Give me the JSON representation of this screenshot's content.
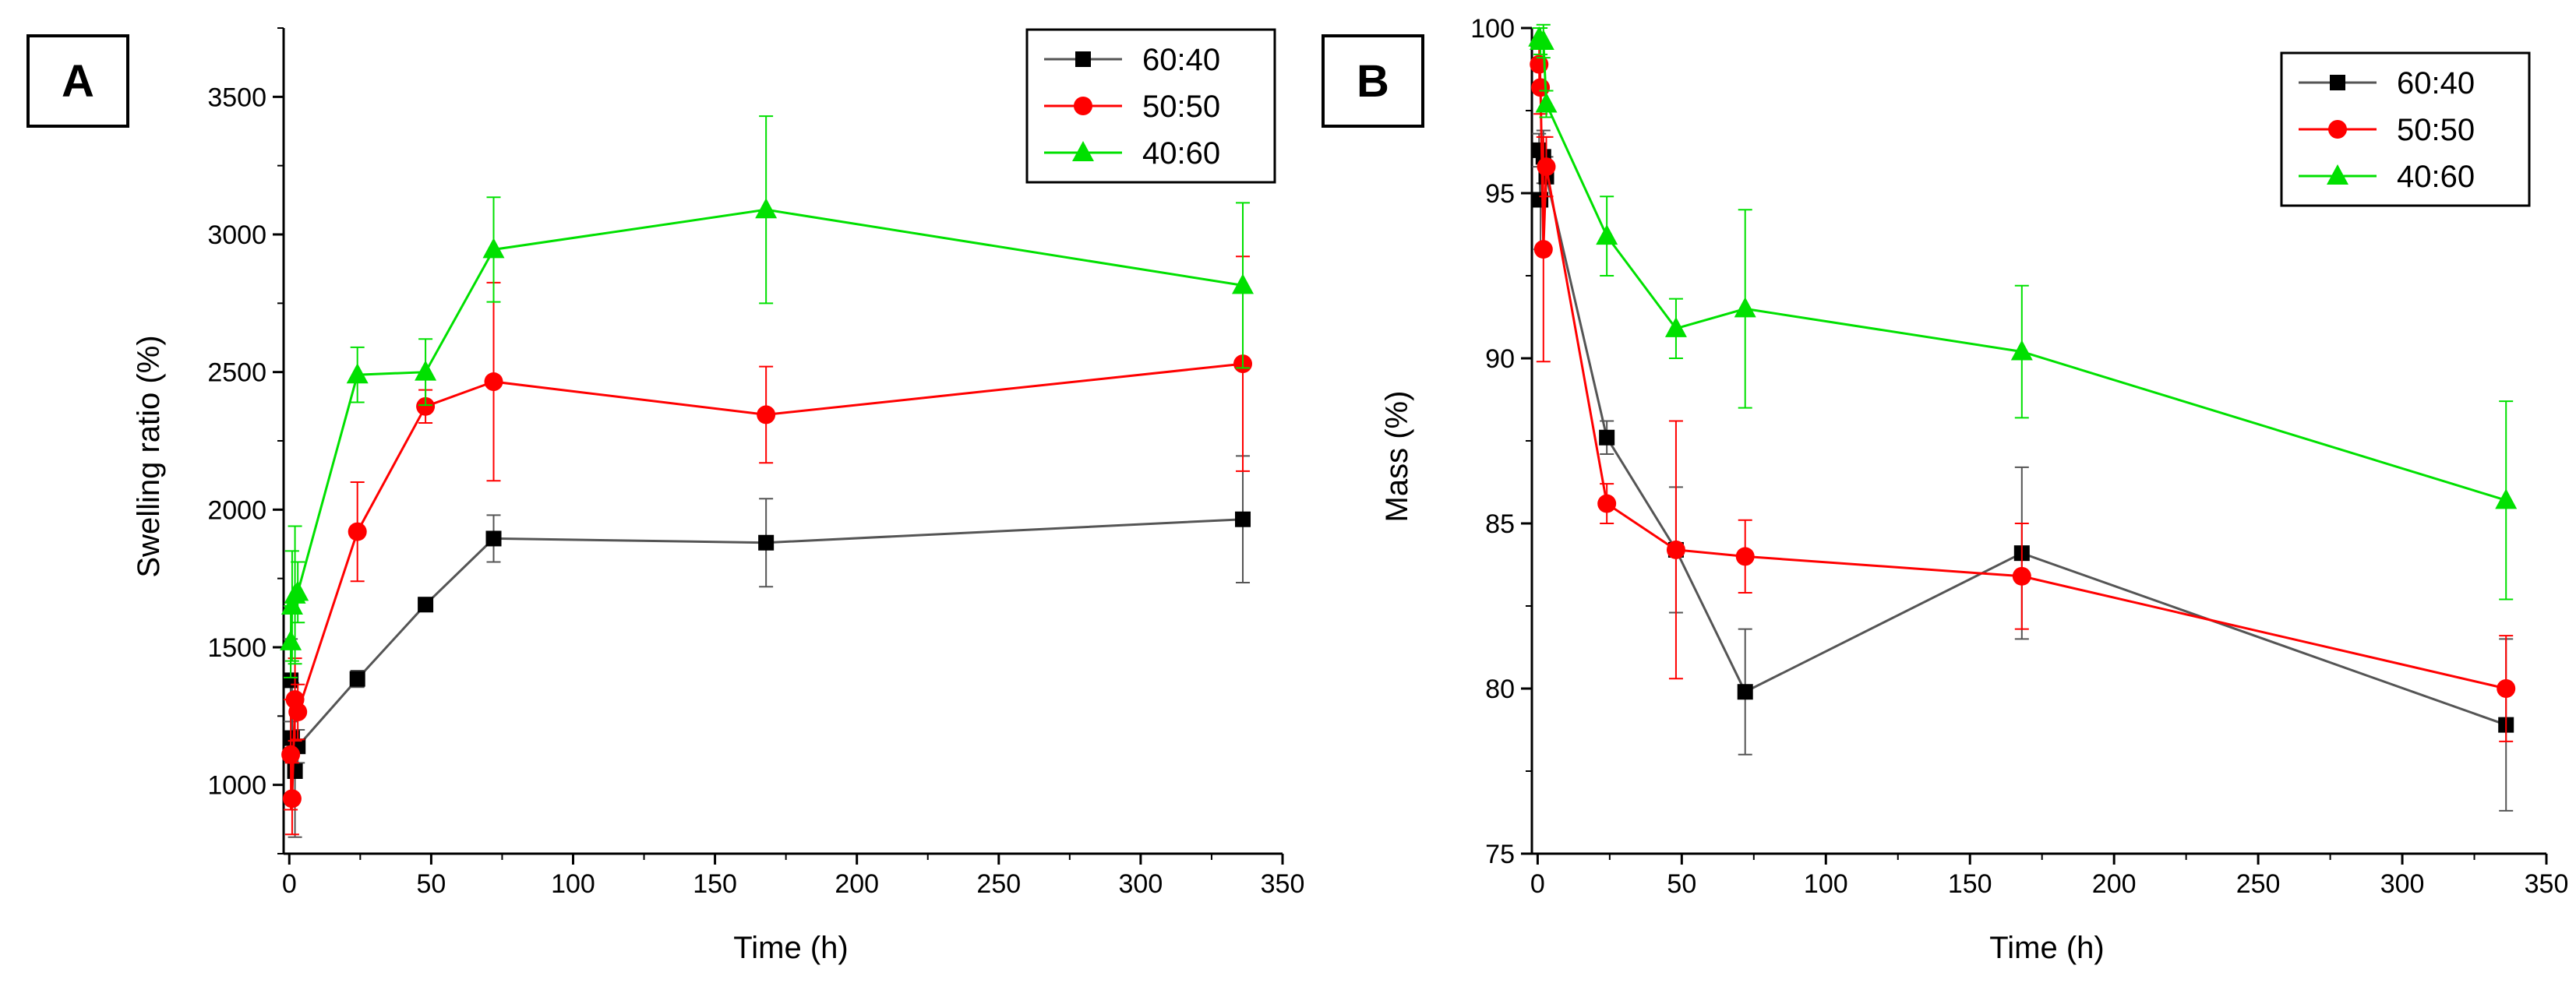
{
  "colors": {
    "s6040": "#000000",
    "s5050": "#ff0000",
    "s4060": "#00e000"
  },
  "chart_data": [
    {
      "type": "line",
      "panel_label": "A",
      "xlabel": "Time (h)",
      "ylabel": "Swelling ratio (%)",
      "xlim": [
        -2,
        350
      ],
      "ylim": [
        750,
        3750
      ],
      "xticks": [
        0,
        50,
        100,
        150,
        200,
        250,
        300,
        350
      ],
      "yticks": [
        1000,
        1500,
        2000,
        2500,
        3000,
        3500
      ],
      "legend_position": "top-right",
      "series": [
        {
          "name": "60:40",
          "color_key": "s6040",
          "marker": "square",
          "x": [
            0.5,
            1,
            2,
            3,
            24,
            48,
            72,
            168,
            336
          ],
          "y": [
            1380,
            1170,
            1050,
            1140,
            1385,
            1655,
            1895,
            1880,
            1965
          ],
          "err": [
            150,
            200,
            240,
            60,
            30,
            25,
            85,
            160,
            230
          ]
        },
        {
          "name": "50:50",
          "color_key": "s5050",
          "marker": "circle",
          "x": [
            0.5,
            1,
            2,
            3,
            24,
            48,
            72,
            168,
            336
          ],
          "y": [
            1110,
            950,
            1310,
            1265,
            1920,
            2375,
            2465,
            2345,
            2530
          ],
          "err": [
            200,
            130,
            150,
            100,
            180,
            60,
            360,
            175,
            390
          ]
        },
        {
          "name": "40:60",
          "color_key": "s4060",
          "marker": "triangle",
          "x": [
            0.5,
            1,
            2,
            3,
            24,
            48,
            72,
            168,
            336
          ],
          "y": [
            1520,
            1650,
            1690,
            1700,
            2490,
            2500,
            2945,
            3090,
            2815
          ],
          "err": [
            130,
            200,
            250,
            110,
            100,
            120,
            190,
            340,
            300
          ]
        }
      ]
    },
    {
      "type": "line",
      "panel_label": "B",
      "xlabel": "Time (h)",
      "ylabel": "Mass (%)",
      "xlim": [
        -2,
        350
      ],
      "ylim": [
        75,
        100
      ],
      "xticks": [
        0,
        50,
        100,
        150,
        200,
        250,
        300,
        350
      ],
      "yticks": [
        75,
        80,
        85,
        90,
        95,
        100
      ],
      "legend_position": "top-right",
      "series": [
        {
          "name": "60:40",
          "color_key": "s6040",
          "marker": "square",
          "x": [
            0.5,
            1,
            2,
            3,
            24,
            48,
            72,
            168,
            336
          ],
          "y": [
            96.3,
            94.8,
            96.1,
            95.5,
            87.6,
            84.2,
            79.9,
            84.1,
            78.9
          ],
          "err": [
            0.5,
            1.5,
            0.8,
            0.6,
            0.5,
            1.9,
            1.9,
            2.6,
            2.6
          ]
        },
        {
          "name": "50:50",
          "color_key": "s5050",
          "marker": "circle",
          "x": [
            0.5,
            1,
            2,
            3,
            24,
            48,
            72,
            168,
            336
          ],
          "y": [
            98.9,
            98.2,
            93.3,
            95.8,
            85.6,
            84.2,
            84.0,
            83.4,
            80.0
          ],
          "err": [
            0.6,
            0.8,
            3.4,
            0.9,
            0.6,
            3.9,
            1.1,
            1.6,
            1.6
          ]
        },
        {
          "name": "40:60",
          "color_key": "s4060",
          "marker": "triangle",
          "x": [
            0.5,
            1,
            2,
            3,
            24,
            48,
            72,
            168,
            336
          ],
          "y": [
            99.7,
            99.6,
            99.6,
            97.7,
            93.7,
            90.9,
            91.5,
            90.2,
            85.7
          ],
          "err": [
            0.3,
            0.4,
            0.5,
            0.4,
            1.2,
            0.9,
            3.0,
            2.0,
            3.0
          ]
        }
      ]
    }
  ]
}
